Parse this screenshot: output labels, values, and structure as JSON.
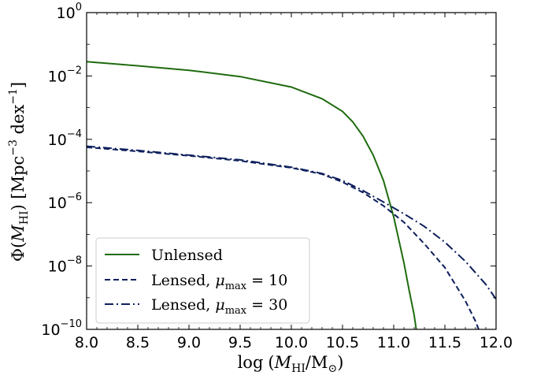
{
  "chart_data": {
    "type": "line",
    "xlabel": "log (M_HI/M_⊙)",
    "ylabel": "Φ(M_HI) [Mpc^-3 dex^-1]",
    "xlim": [
      8.0,
      12.0
    ],
    "ylim_log10": [
      -10,
      0
    ],
    "yscale": "log",
    "x_ticks": [
      "8.0",
      "8.5",
      "9.0",
      "9.5",
      "10.0",
      "10.5",
      "11.0",
      "11.5",
      "12.0"
    ],
    "y_ticks": [
      {
        "base": "10",
        "exp": "0"
      },
      {
        "base": "10",
        "exp": "−2"
      },
      {
        "base": "10",
        "exp": "−4"
      },
      {
        "base": "10",
        "exp": "−6"
      },
      {
        "base": "10",
        "exp": "−8"
      },
      {
        "base": "10",
        "exp": "−10"
      }
    ],
    "legend": {
      "position": "lower-left",
      "entries": [
        {
          "label": "Unlensed",
          "series_index": 0
        },
        {
          "label_prefix": "Lensed, ",
          "symbol": "μ",
          "subscript": "max",
          "label_suffix": " = 10",
          "series_index": 1
        },
        {
          "label_prefix": "Lensed, ",
          "symbol": "μ",
          "subscript": "max",
          "label_suffix": " = 30",
          "series_index": 2
        }
      ]
    },
    "series": [
      {
        "name": "Unlensed",
        "color": "#1f6b0f",
        "style": "solid",
        "x": [
          8.0,
          8.5,
          9.0,
          9.5,
          10.0,
          10.3,
          10.5,
          10.6,
          10.7,
          10.8,
          10.9,
          11.0,
          11.1,
          11.15,
          11.2,
          11.22
        ],
        "log_y": [
          -1.55,
          -1.68,
          -1.82,
          -2.02,
          -2.35,
          -2.72,
          -3.12,
          -3.45,
          -3.9,
          -4.5,
          -5.3,
          -6.45,
          -7.9,
          -8.75,
          -9.55,
          -10.0
        ]
      },
      {
        "name": "Lensed, μmax = 10",
        "color": "#0d1f5c",
        "style": "dashed",
        "x": [
          8.0,
          8.5,
          9.0,
          9.5,
          10.0,
          10.3,
          10.5,
          10.7,
          10.9,
          11.1,
          11.3,
          11.5,
          11.7,
          11.8,
          11.83
        ],
        "log_y": [
          -4.25,
          -4.38,
          -4.52,
          -4.68,
          -4.9,
          -5.1,
          -5.35,
          -5.68,
          -6.1,
          -6.62,
          -7.3,
          -8.05,
          -9.1,
          -9.75,
          -10.0
        ]
      },
      {
        "name": "Lensed, μmax = 30",
        "color": "#0d1f5c",
        "style": "dashdot",
        "x": [
          8.0,
          8.5,
          9.0,
          9.5,
          10.0,
          10.3,
          10.5,
          10.7,
          10.9,
          11.1,
          11.3,
          11.5,
          11.7,
          11.9,
          12.0
        ],
        "log_y": [
          -4.22,
          -4.35,
          -4.5,
          -4.65,
          -4.88,
          -5.08,
          -5.3,
          -5.62,
          -5.98,
          -6.35,
          -6.75,
          -7.25,
          -7.85,
          -8.58,
          -9.05
        ]
      }
    ]
  }
}
